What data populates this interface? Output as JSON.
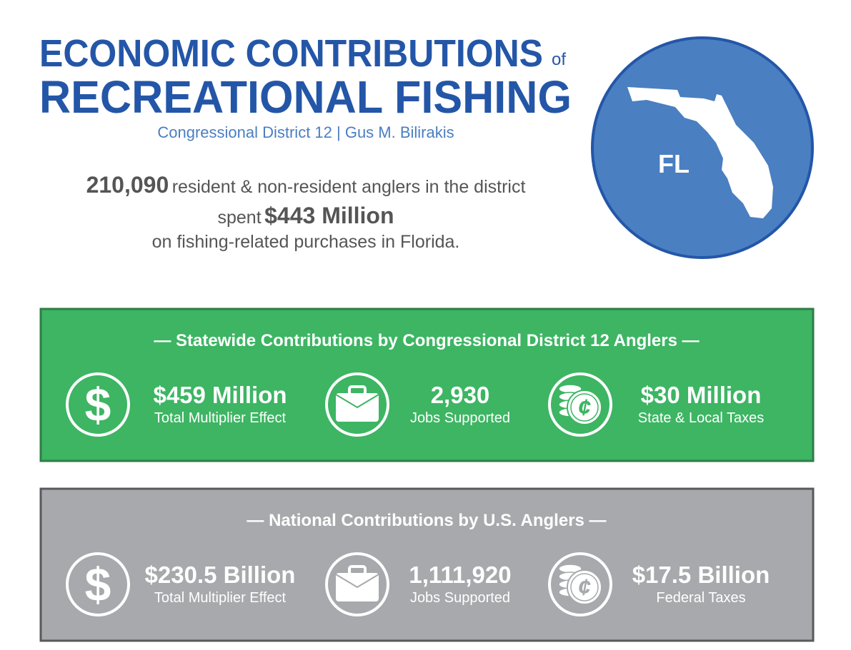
{
  "header": {
    "title_line1": "ECONOMIC CONTRIBUTIONS",
    "title_of": "of",
    "title_line2": "RECREATIONAL FISHING",
    "subtitle": "Congressional District 12 | Gus M. Bilirakis"
  },
  "summary": {
    "anglers": "210,090",
    "anglers_text": "resident & non-resident anglers in the district",
    "spent": "spent",
    "amount": "$443 Million",
    "closing": "on fishing-related purchases in Florida."
  },
  "map": {
    "label": "FL"
  },
  "panels": [
    {
      "heading": "— Statewide Contributions by Congressional District 12 Anglers —",
      "items": [
        {
          "icon": "$",
          "value": "$459 Million",
          "label": "Total Multiplier Effect"
        },
        {
          "value": "2,930",
          "label": "Jobs Supported"
        },
        {
          "icon": "¢",
          "value": "$30 Million",
          "label": "State & Local Taxes"
        }
      ]
    },
    {
      "heading": "— National Contributions by U.S. Anglers —",
      "items": [
        {
          "icon": "$",
          "value": "$230.5 Billion",
          "label": "Total Multiplier Effect"
        },
        {
          "value": "1,111,920",
          "label": "Jobs Supported"
        },
        {
          "icon": "¢",
          "value": "$17.5 Billion",
          "label": "Federal Taxes"
        }
      ]
    }
  ]
}
